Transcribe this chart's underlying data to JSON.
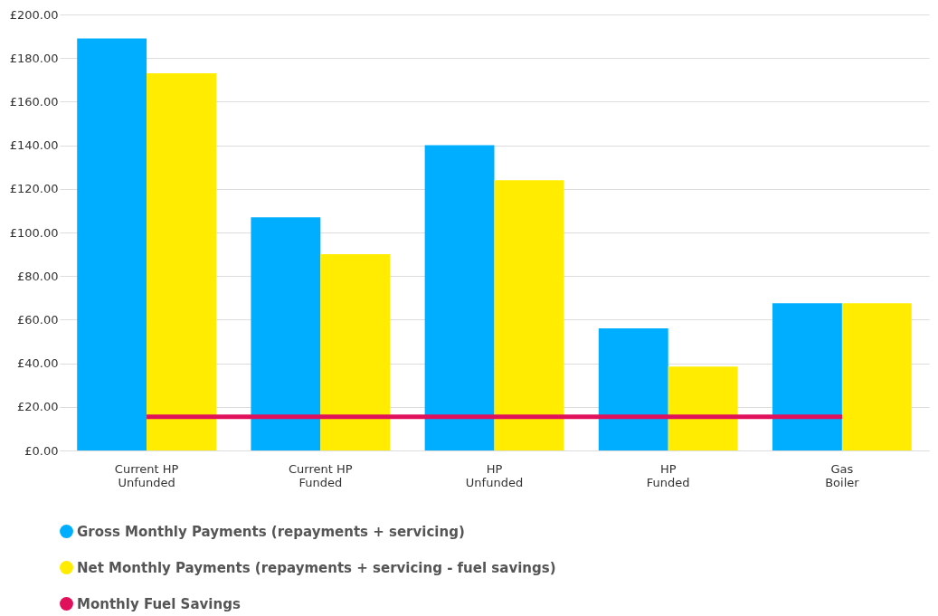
{
  "chart_data": {
    "type": "bar",
    "categories": [
      "Current HP Unfunded",
      "Current HP Funded",
      "HP Unfunded",
      "HP Funded",
      "Gas Boiler"
    ],
    "series": [
      {
        "name": "Gross Monthly Payments (repayments + servicing)",
        "color": "#00aeff",
        "values": [
          189,
          107,
          140,
          56,
          67.5
        ]
      },
      {
        "name": "Net Monthly Payments (repayments + servicing - fuel savings)",
        "color": "#ffec00",
        "values": [
          173,
          90,
          124,
          38.5,
          67.5
        ]
      },
      {
        "name": "Monthly Fuel Savings",
        "color": "#e0105a",
        "type": "line",
        "values": [
          15.5,
          15.5,
          15.5,
          15.5,
          15.5
        ]
      }
    ],
    "ylim": [
      0,
      200
    ],
    "yticks": [
      {
        "value": 0,
        "label": "£0.00"
      },
      {
        "value": 20,
        "label": "£20.00"
      },
      {
        "value": 40,
        "label": "£40.00"
      },
      {
        "value": 60,
        "label": "£60.00"
      },
      {
        "value": 80,
        "label": "£80.00"
      },
      {
        "value": 100,
        "label": "£100.00"
      },
      {
        "value": 120,
        "label": "£120.00"
      },
      {
        "value": 140,
        "label": "£140.00"
      },
      {
        "value": 160,
        "label": "£160.00"
      },
      {
        "value": 180,
        "label": "£180.00"
      },
      {
        "value": 200,
        "label": "£200.00"
      }
    ],
    "grid": "y",
    "legend": "bottom"
  }
}
